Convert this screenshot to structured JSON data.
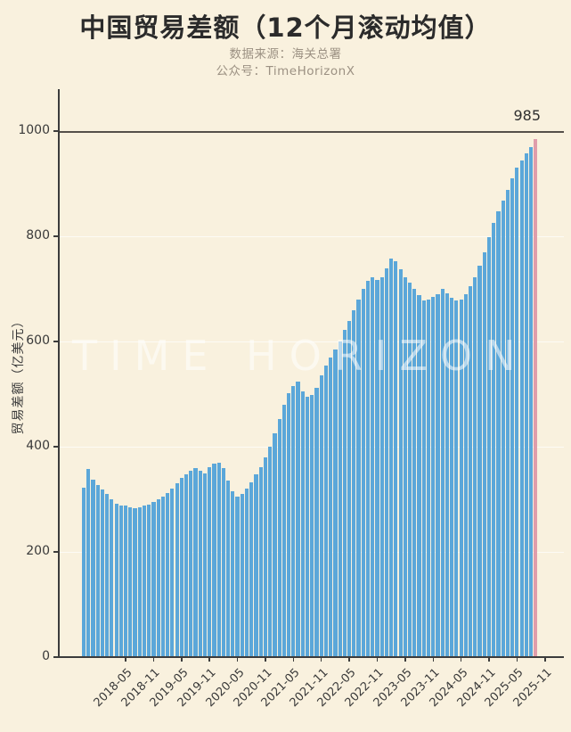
{
  "title": "中国贸易差额（12个月滚动均值）",
  "subtitle": {
    "source_line": "数据来源：海关总署",
    "account_line": "公众号：TimeHorizonX"
  },
  "watermark": "TIME HORIZON",
  "annotation_label": "985",
  "colors": {
    "background": "#f9f1de",
    "bar": "#5ba7d9",
    "bar_highlight": "#e09dab",
    "title": "#2b2b2b",
    "subtitle": "#9c9183",
    "axis": "#3a3a3a",
    "reference_line": "#55504a",
    "gridline": "rgba(255,255,255,0.7)",
    "watermark": "rgba(255,255,255,0.55)"
  },
  "chart_data": {
    "type": "bar",
    "title": "中国贸易差额（12个月滚动均值）",
    "xlabel": "",
    "ylabel": "贸易差额（亿美元）",
    "ylim": [
      0,
      1080
    ],
    "yticks": [
      0,
      200,
      400,
      600,
      800,
      1000
    ],
    "grid": "faint horizontal gridlines at 200-800; dark reference line at 1000",
    "legend": "none",
    "reference_line_value": 1000,
    "months": [
      "2017-08",
      "2017-09",
      "2017-10",
      "2017-11",
      "2017-12",
      "2018-01",
      "2018-02",
      "2018-03",
      "2018-04",
      "2018-05",
      "2018-06",
      "2018-07",
      "2018-08",
      "2018-09",
      "2018-10",
      "2018-11",
      "2018-12",
      "2019-01",
      "2019-02",
      "2019-03",
      "2019-04",
      "2019-05",
      "2019-06",
      "2019-07",
      "2019-08",
      "2019-09",
      "2019-10",
      "2019-11",
      "2019-12",
      "2020-01",
      "2020-02",
      "2020-03",
      "2020-04",
      "2020-05",
      "2020-06",
      "2020-07",
      "2020-08",
      "2020-09",
      "2020-10",
      "2020-11",
      "2020-12",
      "2021-01",
      "2021-02",
      "2021-03",
      "2021-04",
      "2021-05",
      "2021-06",
      "2021-07",
      "2021-08",
      "2021-09",
      "2021-10",
      "2021-11",
      "2021-12",
      "2022-01",
      "2022-02",
      "2022-03",
      "2022-04",
      "2022-05",
      "2022-06",
      "2022-07",
      "2022-08",
      "2022-09",
      "2022-10",
      "2022-11",
      "2022-12",
      "2023-01",
      "2023-02",
      "2023-03",
      "2023-04",
      "2023-05",
      "2023-06",
      "2023-07",
      "2023-08",
      "2023-09",
      "2023-10",
      "2023-11",
      "2023-12",
      "2024-01",
      "2024-02",
      "2024-03",
      "2024-04",
      "2024-05",
      "2024-06",
      "2024-07",
      "2024-08",
      "2024-09",
      "2024-10",
      "2024-11",
      "2024-12",
      "2025-01",
      "2025-02",
      "2025-03",
      "2025-04",
      "2025-05",
      "2025-06",
      "2025-07",
      "2025-08",
      "2025-09"
    ],
    "values": [
      322,
      358,
      338,
      328,
      318,
      310,
      300,
      292,
      288,
      288,
      285,
      283,
      285,
      288,
      290,
      295,
      300,
      305,
      312,
      320,
      330,
      340,
      348,
      355,
      360,
      355,
      350,
      362,
      368,
      370,
      360,
      335,
      315,
      305,
      310,
      320,
      333,
      347,
      362,
      380,
      400,
      425,
      452,
      480,
      502,
      515,
      524,
      505,
      495,
      498,
      512,
      535,
      555,
      570,
      585,
      600,
      622,
      640,
      660,
      680,
      700,
      715,
      722,
      718,
      722,
      740,
      758,
      752,
      738,
      722,
      712,
      700,
      688,
      678,
      680,
      685,
      690,
      700,
      692,
      683,
      678,
      680,
      690,
      705,
      722,
      745,
      770,
      798,
      825,
      848,
      868,
      888,
      910,
      930,
      945,
      958,
      970,
      985
    ],
    "xtick_labels": [
      "2018-05",
      "2018-11",
      "2019-05",
      "2019-11",
      "2020-05",
      "2020-11",
      "2021-05",
      "2021-11",
      "2022-05",
      "2022-11",
      "2023-05",
      "2023-11",
      "2024-05",
      "2024-11",
      "2025-05",
      "2025-11"
    ],
    "highlight_last": true,
    "last_point": {
      "month": "2025-09",
      "value": 985,
      "annotation": "985"
    }
  }
}
